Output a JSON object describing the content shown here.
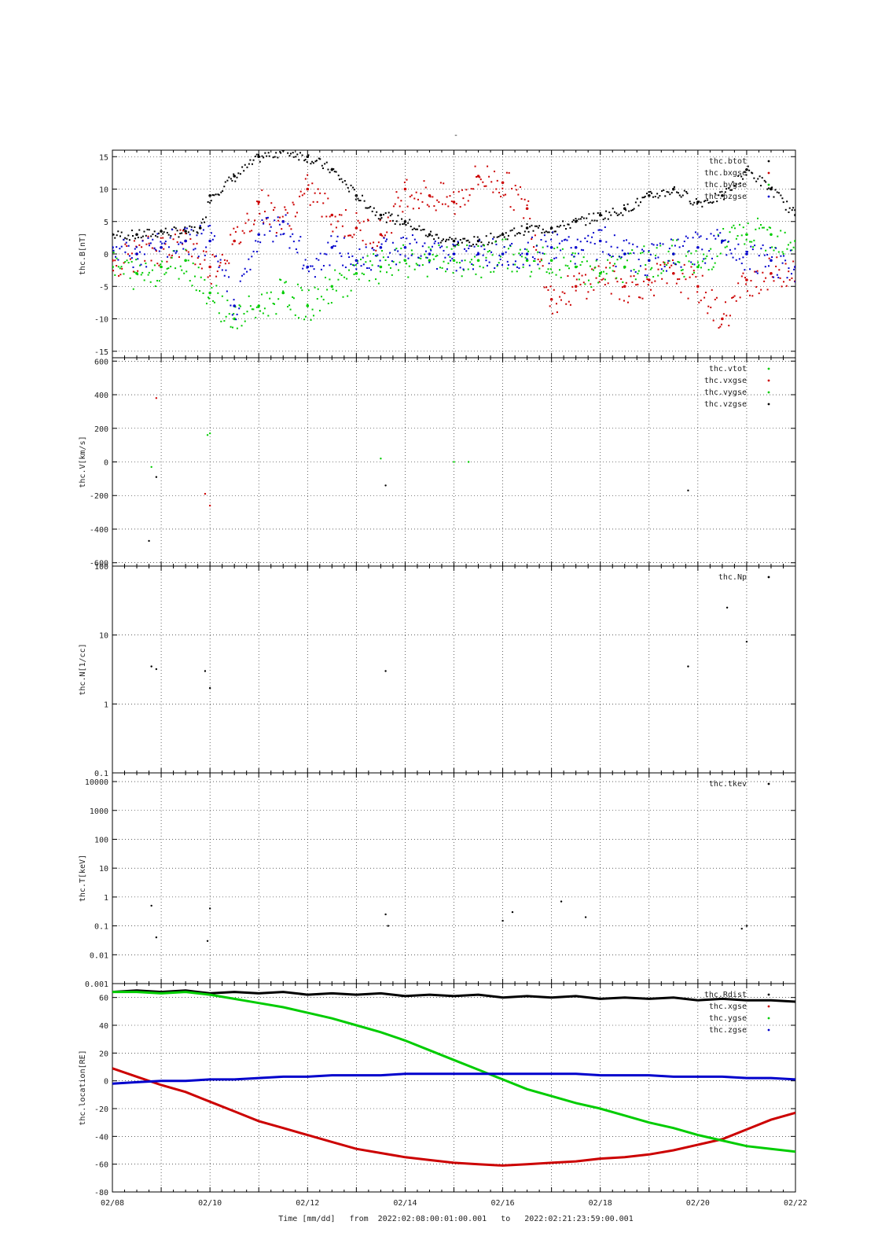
{
  "figure": {
    "title": "-",
    "footer": {
      "xlabel": "Time [mm/dd]",
      "from_label": "from",
      "from_value": "2022:02:08:00:01:00.001",
      "to_label": "to",
      "to_value": "2022:02:21:23:59:00.001"
    },
    "x_ticks": [
      "02/08",
      "02/10",
      "02/12",
      "02/14",
      "02/16",
      "02/18",
      "02/20",
      "02/22"
    ]
  },
  "colors": {
    "black": "#000000",
    "red": "#cc0000",
    "green": "#00cc00",
    "blue": "#0000cc"
  },
  "chart_data": [
    {
      "type": "scatter",
      "ylabel": "thc.B[nT]",
      "ylim": [
        -16,
        16
      ],
      "yticks": [
        15,
        10,
        5,
        0,
        -5,
        -10,
        -15
      ],
      "grid": true,
      "legend_position": "top-right",
      "x_unit": "days since 02/08 00:00",
      "series": [
        {
          "name": "thc.btot",
          "color": "black",
          "x": [
            0,
            0.5,
            1,
            1.5,
            1.8,
            2.0,
            2.5,
            3,
            3.5,
            4,
            4.5,
            5,
            5.5,
            6,
            6.5,
            7,
            7.5,
            8,
            8.5,
            9,
            9.5,
            10,
            10.5,
            11,
            11.5,
            12,
            12.5,
            13,
            13.5,
            14
          ],
          "y": [
            3,
            3,
            3.5,
            3.5,
            4,
            9,
            12,
            15,
            16,
            15,
            13,
            9,
            6,
            5,
            3,
            2,
            2,
            3,
            4,
            4,
            5,
            6,
            7,
            9,
            10,
            8,
            9,
            13,
            10,
            6
          ]
        },
        {
          "name": "thc.bxgse",
          "color": "red",
          "x": [
            0,
            0.5,
            1,
            1.5,
            2,
            2.5,
            3,
            3.5,
            4,
            4.5,
            5,
            5.5,
            6,
            6.5,
            7,
            7.5,
            8,
            8.5,
            9,
            9.5,
            10,
            10.5,
            11,
            11.5,
            12,
            12.5,
            13,
            13.5,
            14
          ],
          "y": [
            -1,
            0,
            1,
            2,
            -2,
            2,
            8,
            5,
            10,
            6,
            4,
            3,
            10,
            9,
            8,
            12,
            11,
            7,
            -7,
            -5,
            -3,
            -5,
            -4,
            -3,
            -5,
            -10,
            -4,
            -3,
            -2
          ]
        },
        {
          "name": "thc.bygse",
          "color": "green",
          "x": [
            0,
            0.5,
            1,
            1.5,
            2,
            2.5,
            3,
            3.5,
            4,
            4.5,
            5,
            5.5,
            6,
            6.5,
            7,
            7.5,
            8,
            8.5,
            9,
            9.5,
            10,
            10.5,
            11,
            11.5,
            12,
            12.5,
            13,
            13.5,
            14
          ],
          "y": [
            -2,
            -3,
            -2,
            -1,
            -6,
            -10,
            -8,
            -6,
            -8,
            -5,
            -3,
            -2,
            -1,
            -1,
            -1,
            -1,
            0,
            -1,
            -1,
            -2,
            -3,
            -2,
            -1,
            0,
            -2,
            2,
            3,
            3,
            2
          ]
        },
        {
          "name": "thc.bzgse",
          "color": "blue",
          "x": [
            0,
            0.5,
            1,
            1.5,
            2,
            2.5,
            3,
            3.5,
            4,
            4.5,
            5,
            5.5,
            6,
            6.5,
            7,
            7.5,
            8,
            8.5,
            9,
            9.5,
            10,
            10.5,
            11,
            11.5,
            12,
            12.5,
            13,
            13.5,
            14
          ],
          "y": [
            1,
            0,
            1,
            2,
            2,
            -8,
            3,
            5,
            -2,
            1,
            -1,
            1,
            1,
            0,
            0,
            0,
            0,
            0,
            1,
            1,
            2,
            0,
            -1,
            0,
            1,
            2,
            0,
            -1,
            -2
          ]
        }
      ]
    },
    {
      "type": "scatter",
      "ylabel": "thc.V[km/s]",
      "ylim": [
        -620,
        620
      ],
      "yticks": [
        600,
        400,
        200,
        0,
        -200,
        -400,
        -600
      ],
      "grid": true,
      "legend_position": "top-right",
      "series": [
        {
          "name": "thc.vtot",
          "color": "green",
          "x": [
            0.8,
            2.0,
            5.5
          ],
          "y": [
            -30,
            170,
            20
          ]
        },
        {
          "name": "thc.vxgse",
          "color": "red",
          "x": [
            0.9,
            1.9,
            2.0
          ],
          "y": [
            380,
            -190,
            -260
          ]
        },
        {
          "name": "thc.vygse",
          "color": "green",
          "x": [
            1.95,
            7.0,
            7.3
          ],
          "y": [
            160,
            0,
            0
          ]
        },
        {
          "name": "thc.vzgse",
          "color": "black",
          "x": [
            0.75,
            0.9,
            5.6,
            11.8
          ],
          "y": [
            -470,
            -90,
            -140,
            -170
          ]
        }
      ]
    },
    {
      "type": "scatter",
      "ylabel": "thc.N[1/cc]",
      "yscale": "log",
      "ylim": [
        0.1,
        100
      ],
      "yticks": [
        "100",
        "10",
        "1",
        "0.1"
      ],
      "grid": true,
      "legend_position": "top-right",
      "series": [
        {
          "name": "thc.Np",
          "color": "black",
          "x": [
            0.8,
            0.9,
            1.9,
            2.0,
            5.6,
            11.8,
            12.6,
            13.0
          ],
          "y": [
            3.5,
            3.2,
            3.0,
            1.7,
            3.0,
            3.5,
            25,
            8
          ]
        }
      ]
    },
    {
      "type": "scatter",
      "ylabel": "thc.T[keV]",
      "yscale": "log",
      "ylim": [
        0.001,
        20000
      ],
      "yticks": [
        "10000",
        "1000",
        "100",
        "10",
        "1",
        "0.1",
        "0.01",
        "0.001"
      ],
      "grid": true,
      "legend_position": "top-right",
      "series": [
        {
          "name": "thc.tkev",
          "color": "black",
          "x": [
            0.8,
            0.9,
            1.95,
            2.0,
            5.6,
            5.65,
            8.0,
            8.2,
            9.2,
            9.7,
            12.9,
            13.0
          ],
          "y": [
            0.5,
            0.04,
            0.03,
            0.4,
            0.25,
            0.1,
            0.15,
            0.3,
            0.7,
            0.2,
            0.08,
            0.1
          ]
        }
      ]
    },
    {
      "type": "line",
      "ylabel": "thc.location[RE]",
      "ylim": [
        -80,
        70
      ],
      "yticks": [
        60,
        40,
        20,
        0,
        -20,
        -40,
        -60,
        -80
      ],
      "grid": true,
      "legend_position": "top-right",
      "series": [
        {
          "name": "thc.Rdist",
          "color": "black",
          "x": [
            0,
            0.5,
            1,
            1.5,
            2,
            2.5,
            3,
            3.5,
            4,
            4.5,
            5,
            5.5,
            6,
            6.5,
            7,
            7.5,
            8,
            8.5,
            9,
            9.5,
            10,
            10.5,
            11,
            11.5,
            12,
            12.5,
            13,
            13.5,
            14
          ],
          "y": [
            64,
            65,
            64,
            65,
            63,
            64,
            63,
            64,
            62,
            63,
            62,
            63,
            61,
            62,
            61,
            62,
            60,
            61,
            60,
            61,
            59,
            60,
            59,
            60,
            58,
            59,
            58,
            58,
            57
          ]
        },
        {
          "name": "thc.xgse",
          "color": "red",
          "x": [
            0,
            0.5,
            1,
            1.5,
            2,
            2.5,
            3,
            3.5,
            4,
            4.5,
            5,
            5.5,
            6,
            6.5,
            7,
            7.5,
            8,
            8.5,
            9,
            9.5,
            10,
            10.5,
            11,
            11.5,
            12,
            12.5,
            13,
            13.5,
            14
          ],
          "y": [
            9,
            3,
            -3,
            -8,
            -15,
            -22,
            -29,
            -34,
            -39,
            -44,
            -49,
            -52,
            -55,
            -57,
            -59,
            -60,
            -61,
            -60,
            -59,
            -58,
            -56,
            -55,
            -53,
            -50,
            -46,
            -42,
            -35,
            -28,
            -23
          ]
        },
        {
          "name": "thc.ygse",
          "color": "green",
          "x": [
            0,
            0.5,
            1,
            1.5,
            2,
            2.5,
            3,
            3.5,
            4,
            4.5,
            5,
            5.5,
            6,
            6.5,
            7,
            7.5,
            8,
            8.5,
            9,
            9.5,
            10,
            10.5,
            11,
            11.5,
            12,
            12.5,
            13,
            13.5,
            14
          ],
          "y": [
            64,
            64,
            63,
            64,
            62,
            59,
            56,
            53,
            49,
            45,
            40,
            35,
            29,
            22,
            15,
            8,
            1,
            -6,
            -11,
            -16,
            -20,
            -25,
            -30,
            -34,
            -39,
            -43,
            -47,
            -49,
            -51
          ]
        },
        {
          "name": "thc.zgse",
          "color": "blue",
          "x": [
            0,
            0.5,
            1,
            1.5,
            2,
            2.5,
            3,
            3.5,
            4,
            4.5,
            5,
            5.5,
            6,
            6.5,
            7,
            7.5,
            8,
            8.5,
            9,
            9.5,
            10,
            10.5,
            11,
            11.5,
            12,
            12.5,
            13,
            13.5,
            14
          ],
          "y": [
            -2,
            -1,
            0,
            0,
            1,
            1,
            2,
            3,
            3,
            4,
            4,
            4,
            5,
            5,
            5,
            5,
            5,
            5,
            5,
            5,
            4,
            4,
            4,
            3,
            3,
            3,
            2,
            2,
            1
          ]
        }
      ]
    }
  ]
}
